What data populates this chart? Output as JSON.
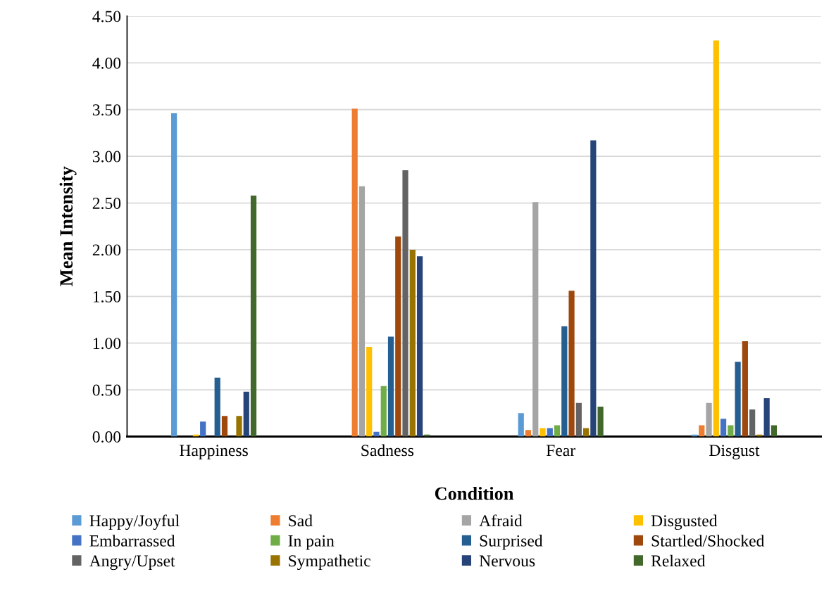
{
  "chart_data": {
    "type": "bar",
    "xlabel": "Condition",
    "ylabel": "Mean Intensity",
    "categories": [
      "Happiness",
      "Sadness",
      "Fear",
      "Disgust"
    ],
    "series": [
      {
        "name": "Happy/Joyful",
        "color": "#5b9bd5",
        "values": [
          3.46,
          0,
          0.25,
          0.02
        ]
      },
      {
        "name": "Sad",
        "color": "#ed7d31",
        "values": [
          0,
          3.51,
          0.07,
          0.12
        ]
      },
      {
        "name": "Afraid",
        "color": "#a5a5a5",
        "values": [
          0,
          2.68,
          2.51,
          0.36
        ]
      },
      {
        "name": "Disgusted",
        "color": "#ffc000",
        "values": [
          0.02,
          0.96,
          0.09,
          4.24
        ]
      },
      {
        "name": "Embarrassed",
        "color": "#4472c4",
        "values": [
          0.16,
          0.05,
          0.09,
          0.19
        ]
      },
      {
        "name": "In pain",
        "color": "#70ad47",
        "values": [
          0,
          0.54,
          0.12,
          0.12
        ]
      },
      {
        "name": "Surprised",
        "color": "#255e91",
        "values": [
          0.63,
          1.07,
          1.18,
          0.8
        ]
      },
      {
        "name": "Startled/Shocked",
        "color": "#9e480e",
        "values": [
          0.22,
          2.14,
          1.56,
          1.02
        ]
      },
      {
        "name": "Angry/Upset",
        "color": "#636363",
        "values": [
          0,
          2.85,
          0.36,
          0.29
        ]
      },
      {
        "name": "Sympathetic",
        "color": "#997300",
        "values": [
          0.22,
          2.0,
          0.09,
          0.02
        ]
      },
      {
        "name": "Nervous",
        "color": "#264478",
        "values": [
          0.48,
          1.93,
          3.17,
          0.41
        ]
      },
      {
        "name": "Relaxed",
        "color": "#43682b",
        "values": [
          2.58,
          0.02,
          0.32,
          0.12
        ]
      }
    ],
    "ylim": [
      0,
      4.5
    ],
    "yticks": [
      {
        "value": 0,
        "label": "0.00"
      },
      {
        "value": 0.5,
        "label": "0.50"
      },
      {
        "value": 1,
        "label": "1.00"
      },
      {
        "value": 1.5,
        "label": "1.50"
      },
      {
        "value": 2,
        "label": "2.00"
      },
      {
        "value": 2.5,
        "label": "2.50"
      },
      {
        "value": 3,
        "label": "3.00"
      },
      {
        "value": 3.5,
        "label": "3.50"
      },
      {
        "value": 4,
        "label": "4.00"
      },
      {
        "value": 4.5,
        "label": "4.50"
      }
    ],
    "grid": "y",
    "legend": "bottom"
  }
}
